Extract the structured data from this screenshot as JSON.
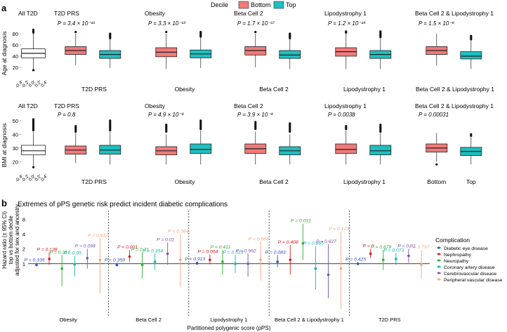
{
  "panel_letters": {
    "a": "a",
    "b": "b"
  },
  "legend_top": {
    "title": "Decile",
    "items": [
      {
        "label": "Bottom",
        "color": "#f07a7a"
      },
      {
        "label": "Top",
        "color": "#1fbfc0"
      }
    ]
  },
  "chart_data": [
    {
      "type": "box",
      "row": "age",
      "ylabel": "Age at diagnosis",
      "ylim": [
        0,
        90
      ],
      "yticks": [
        20,
        40,
        60,
        80
      ],
      "reference_panel": {
        "title": "All T2D",
        "xticks": [
          "-0.4",
          "-0.2",
          "0.0",
          "0.2",
          "0.4"
        ],
        "box": {
          "q1": 37,
          "median": 45,
          "q3": 53,
          "low": 17,
          "high": 80,
          "outliers_high": [
            82,
            84,
            85,
            86,
            87
          ],
          "outliers_low": [
            15
          ]
        }
      },
      "panels": [
        {
          "title": "T2D PRS",
          "pvalue": "P = 3.4 × 10⁻¹⁶",
          "xlabel": "T2D PRS",
          "bottom": {
            "q1": 43,
            "median": 50,
            "q3": 57,
            "low": 24,
            "high": 80,
            "outliers_high": [
              83
            ],
            "outliers_low": []
          },
          "top": {
            "q1": 36,
            "median": 43,
            "q3": 50,
            "low": 19,
            "high": 70,
            "outliers_high": [
              72,
              74,
              76,
              78,
              80
            ],
            "outliers_low": []
          }
        },
        {
          "title": "Obesity",
          "pvalue": "P = 3.3 × 10⁻¹³",
          "xlabel": "Obesity",
          "bottom": {
            "q1": 39,
            "median": 47,
            "q3": 55,
            "low": 17,
            "high": 80,
            "outliers_high": [
              83
            ],
            "outliers_low": []
          },
          "top": {
            "q1": 37,
            "median": 44,
            "q3": 51,
            "low": 19,
            "high": 73,
            "outliers_high": [
              75,
              77,
              79,
              81,
              83
            ],
            "outliers_low": []
          }
        },
        {
          "title": "Beta Cell 2",
          "pvalue": "P = 1.7 × 10⁻¹⁷",
          "xlabel": "Beta Cell 2",
          "bottom": {
            "q1": 42,
            "median": 50,
            "q3": 57,
            "low": 20,
            "high": 80,
            "outliers_high": [
              83
            ],
            "outliers_low": []
          },
          "top": {
            "q1": 36,
            "median": 42,
            "q3": 50,
            "low": 17,
            "high": 70,
            "outliers_high": [
              72,
              74,
              76,
              78,
              80
            ],
            "outliers_low": []
          }
        },
        {
          "title": "Lipodystrophy 1",
          "pvalue": "P = 1.2 × 10⁻¹⁴",
          "xlabel": "Lipodystrophy 1",
          "bottom": {
            "q1": 40,
            "median": 48,
            "q3": 55,
            "low": 17,
            "high": 80,
            "outliers_high": [
              82,
              84
            ],
            "outliers_low": []
          },
          "top": {
            "q1": 36,
            "median": 43,
            "q3": 50,
            "low": 17,
            "high": 72,
            "outliers_high": [
              74,
              76,
              78,
              80,
              82,
              84
            ],
            "outliers_low": []
          }
        },
        {
          "title": "Beta Cell 2 & Lipodystrophy 1",
          "pvalue": "P = 1.5 × 10⁻⁸",
          "xlabel": "Beta Cell 2 & Lipodystrophy 1",
          "bottom": {
            "q1": 43,
            "median": 50,
            "q3": 57,
            "low": 23,
            "high": 80,
            "outliers_high": [],
            "outliers_low": []
          },
          "top": {
            "q1": 35,
            "median": 40,
            "q3": 48,
            "low": 17,
            "high": 68,
            "outliers_high": [
              70,
              72,
              74,
              76
            ],
            "outliers_low": []
          }
        }
      ]
    },
    {
      "type": "box",
      "row": "bmi",
      "ylabel": "BMI at diagnosis",
      "ylim": [
        12,
        52
      ],
      "yticks": [
        20,
        30,
        40,
        50
      ],
      "reference_panel": {
        "title": "All T2D",
        "xticks": [
          "-0.4",
          "-0.2",
          "0.0",
          "0.2",
          "0.4"
        ],
        "box": {
          "q1": 25,
          "median": 28,
          "q3": 32,
          "low": 17,
          "high": 42,
          "outliers_high": [
            43,
            44,
            45,
            46,
            47,
            48,
            49,
            50,
            51
          ],
          "outliers_low": [
            16
          ]
        }
      },
      "panels": [
        {
          "title": "T2D PRS",
          "pvalue": "P = 0.8",
          "xlabel": "T2D PRS",
          "bottom": {
            "q1": 25.5,
            "median": 28.5,
            "q3": 31.5,
            "low": 19,
            "high": 41,
            "outliers_high": [
              42,
              43,
              44,
              45,
              46
            ],
            "outliers_low": []
          },
          "top": {
            "q1": 25.5,
            "median": 28.5,
            "q3": 32,
            "low": 18,
            "high": 42,
            "outliers_high": [
              43,
              44,
              45,
              46,
              47,
              48,
              49,
              50
            ],
            "outliers_low": []
          }
        },
        {
          "title": "Obesity",
          "pvalue": "P = 4.9 × 10⁻⁸",
          "xlabel": "Obesity",
          "bottom": {
            "q1": 25,
            "median": 28,
            "q3": 31,
            "low": 18,
            "high": 40,
            "outliers_high": [
              42,
              43,
              44,
              45,
              46,
              47
            ],
            "outliers_low": []
          },
          "top": {
            "q1": 26,
            "median": 29,
            "q3": 33,
            "low": 18,
            "high": 43,
            "outliers_high": [
              44,
              45,
              46,
              47,
              48,
              49,
              50
            ],
            "outliers_low": []
          }
        },
        {
          "title": "Beta Cell 2",
          "pvalue": "P = 3.9 × 10⁻⁸",
          "xlabel": "Beta Cell 2",
          "bottom": {
            "q1": 26,
            "median": 29.5,
            "q3": 33,
            "low": 18,
            "high": 42,
            "outliers_high": [
              44,
              45,
              46,
              47,
              48,
              49
            ],
            "outliers_low": []
          },
          "top": {
            "q1": 25,
            "median": 28,
            "q3": 31,
            "low": 18,
            "high": 40,
            "outliers_high": [
              42,
              43,
              44,
              45,
              46,
              47,
              48
            ],
            "outliers_low": []
          }
        },
        {
          "title": "Lipodystrophy 1",
          "pvalue": "P = 0.0038",
          "xlabel": "Lipodystrophy 1",
          "bottom": {
            "q1": 26,
            "median": 29,
            "q3": 33,
            "low": 18,
            "high": 43,
            "outliers_high": [
              44,
              45,
              46
            ],
            "outliers_low": []
          },
          "top": {
            "q1": 25,
            "median": 28,
            "q3": 32,
            "low": 18,
            "high": 41,
            "outliers_high": [
              42,
              43,
              44,
              45,
              46,
              47
            ],
            "outliers_low": []
          }
        },
        {
          "title": "Beta Cell 2 & Lipodystrophy 1",
          "pvalue": "P = 0.00031",
          "xlabel": "Bottom|Top",
          "bottom": {
            "q1": 27,
            "median": 30,
            "q3": 33,
            "low": 20,
            "high": 41,
            "outliers_high": [],
            "outliers_low": [
              18
            ]
          },
          "top": {
            "q1": 24.5,
            "median": 27.5,
            "q3": 30.5,
            "low": 18,
            "high": 38,
            "outliers_high": [
              39,
              40
            ],
            "outliers_low": []
          }
        }
      ]
    },
    {
      "type": "forest",
      "title": "Extremes of pPS genetic risk predict incident diabetic complications",
      "ylabel": [
        "Hazard ratio (± 95% CI)",
        "top vs bottom decile",
        "adjusted for sex and ancestry"
      ],
      "xlabel": "Partitioned polygenic score (pPS)",
      "scale": "log",
      "ylim": [
        0.1,
        12
      ],
      "yticks": [
        8,
        4,
        2,
        1
      ],
      "legend_title": "Complication",
      "complications": [
        {
          "name": "Diabetic eye disease",
          "color": "#2f4fbf"
        },
        {
          "name": "Nephropathy",
          "color": "#d7191c"
        },
        {
          "name": "Neuropathy",
          "color": "#33aa33"
        },
        {
          "name": "Coronary artery disease",
          "color": "#12b2b7"
        },
        {
          "name": "Cerebrovascular disease",
          "color": "#7b52ae"
        },
        {
          "name": "Peripheral vascular disease",
          "color": "#f4a582"
        }
      ],
      "groups": [
        {
          "label": "Obesity",
          "points": [
            {
              "hr": 0.95,
              "lo": 0.88,
              "hi": 1.05,
              "p": "P = 0.335"
            },
            {
              "hr": 1.25,
              "lo": 0.95,
              "hi": 1.7,
              "p": "P = 0.138"
            },
            {
              "hr": 0.8,
              "lo": 0.35,
              "hi": 1.5,
              "p": "P = 0.357"
            },
            {
              "hr": 0.97,
              "lo": 0.55,
              "hi": 1.45,
              "p": "P = 0.95"
            },
            {
              "hr": 1.3,
              "lo": 0.8,
              "hi": 2.0,
              "p": "P = 0.098"
            },
            {
              "hr": 1.2,
              "lo": 0.25,
              "hi": 3.3,
              "p": "P = 0.832"
            }
          ]
        },
        {
          "label": "Beta Cell 2",
          "points": [
            {
              "hr": 0.95,
              "lo": 0.88,
              "hi": 1.05,
              "p": "P = 0.359"
            },
            {
              "hr": 1.4,
              "lo": 1.1,
              "hi": 1.9,
              "p": "P = 0.001"
            },
            {
              "hr": 0.95,
              "lo": 0.5,
              "hi": 1.7,
              "p": "P = 0.71"
            },
            {
              "hr": 1.1,
              "lo": 0.75,
              "hi": 1.6,
              "p": "P = 0.354"
            },
            {
              "hr": 1.6,
              "lo": 0.95,
              "hi": 2.7,
              "p": "P = 0.02"
            },
            {
              "hr": 1.2,
              "lo": 0.35,
              "hi": 4.0,
              "p": "P = 0.384"
            }
          ]
        },
        {
          "label": "Lipodystrophy 1",
          "points": [
            {
              "hr": 1.02,
              "lo": 0.95,
              "hi": 1.1,
              "p": "P = 0.913"
            },
            {
              "hr": 1.2,
              "lo": 0.97,
              "hi": 1.55,
              "p": "P = 0.064"
            },
            {
              "hr": 1.1,
              "lo": 0.6,
              "hi": 1.9,
              "p": "P = 0.411"
            },
            {
              "hr": 1.0,
              "lo": 0.65,
              "hi": 1.5,
              "p": "P = 0.513"
            },
            {
              "hr": 1.0,
              "lo": 0.55,
              "hi": 1.6,
              "p": "P = 0.992"
            },
            {
              "hr": 1.2,
              "lo": 0.45,
              "hi": 2.8,
              "p": "P = 0.686"
            }
          ]
        },
        {
          "label": "Beta Cell 2 & Lipodystrophy 1",
          "points": [
            {
              "hr": 1.1,
              "lo": 0.85,
              "hi": 1.5,
              "p": "P = 0.083"
            },
            {
              "hr": 1.2,
              "lo": 0.6,
              "hi": 2.4,
              "p": "P = 0.408"
            },
            {
              "hr": 2.6,
              "lo": 1.2,
              "hi": 6.5,
              "p": "P = 0.031"
            },
            {
              "hr": 0.8,
              "lo": 0.3,
              "hi": 2.3,
              "p": "P = 0.865"
            },
            {
              "hr": 0.6,
              "lo": 0.2,
              "hi": 2.5,
              "p": "P = 0.627"
            },
            {
              "hr": 0.8,
              "lo": 0.12,
              "hi": 4.5,
              "p": "P = 0.123"
            }
          ]
        },
        {
          "label": "T2D PRS",
          "points": [
            {
              "hr": 1.0,
              "lo": 0.93,
              "hi": 1.07,
              "p": "P = 0.425"
            },
            {
              "hr": 1.6,
              "lo": 1.3,
              "hi": 2.0,
              "p": "P = 0"
            },
            {
              "hr": 1.2,
              "lo": 0.75,
              "hi": 1.9,
              "p": "P = 0.678"
            },
            {
              "hr": 1.25,
              "lo": 0.95,
              "hi": 1.65,
              "p": "P = 0.073"
            },
            {
              "hr": 1.45,
              "lo": 1.05,
              "hi": 2.0,
              "p": "P = 0.02"
            },
            {
              "hr": 0.95,
              "lo": 0.5,
              "hi": 1.9,
              "p": "P = 0.797"
            }
          ]
        }
      ]
    }
  ]
}
